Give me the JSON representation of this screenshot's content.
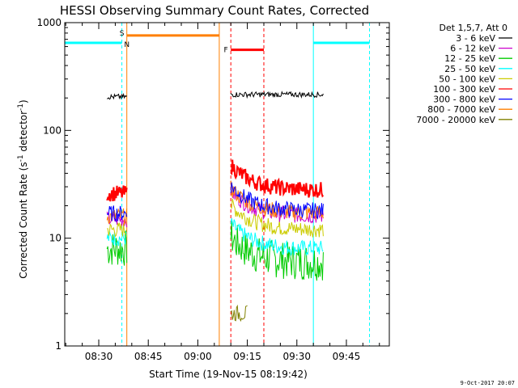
{
  "chart_data": {
    "type": "line",
    "title": "HESSI Observing Summary Count Rates, Corrected",
    "ylabel": "Corrected Count Rate (s⁻¹ detector⁻¹)",
    "xlabel": "Start Time (19-Nov-15 08:19:42)",
    "y_scale": "log",
    "ylim": [
      1,
      1000
    ],
    "xlim_minutes": [
      "08:19:42",
      "09:58:00"
    ],
    "y_ticks": [
      "1",
      "10",
      "100",
      "1000"
    ],
    "x_ticks": [
      "08:30",
      "08:45",
      "09:00",
      "09:15",
      "09:30",
      "09:45"
    ],
    "legend_title": "Det 1,5,7, Att 0",
    "legend_placement": "right",
    "series": [
      {
        "name": "3 - 6 keV",
        "color": "#000000",
        "segments": [
          {
            "x": [
              "08:32:30",
              "08:38:30"
            ],
            "level": 205
          },
          {
            "x": [
              "09:10:00",
              "09:38:00"
            ],
            "level": 205
          }
        ]
      },
      {
        "name": "6 - 12 keV",
        "color": "#cc00cc",
        "segments": [
          {
            "x": [
              "08:32:30",
              "08:38:30"
            ],
            "level": 15
          },
          {
            "x": [
              "09:10:00",
              "09:38:00"
            ],
            "level": 16
          }
        ]
      },
      {
        "name": "12 - 25 keV",
        "color": "#00cc00",
        "segments": [
          {
            "x": [
              "08:32:30",
              "08:38:30"
            ],
            "level": 8
          },
          {
            "x": [
              "09:10:00",
              "09:38:00"
            ],
            "level": 6
          }
        ]
      },
      {
        "name": "25 - 50 keV",
        "color": "#00ffff",
        "segments": [
          {
            "x": [
              "08:32:30",
              "08:38:30"
            ],
            "level": 10
          },
          {
            "x": [
              "09:10:00",
              "09:38:00"
            ],
            "level": 8
          }
        ]
      },
      {
        "name": "50 - 100 keV",
        "color": "#cccc00",
        "segments": [
          {
            "x": [
              "08:32:30",
              "08:38:30"
            ],
            "level": 12
          },
          {
            "x": [
              "09:10:00",
              "09:38:00"
            ],
            "level": 12
          }
        ]
      },
      {
        "name": "100 - 300 keV",
        "color": "#ff0000",
        "segments": [
          {
            "x": [
              "08:32:30",
              "08:38:30"
            ],
            "level": 26
          },
          {
            "x": [
              "09:10:00",
              "09:38:00"
            ],
            "level": 28
          }
        ]
      },
      {
        "name": "300 - 800 keV",
        "color": "#0000ff",
        "segments": [
          {
            "x": [
              "08:32:30",
              "08:38:30"
            ],
            "level": 17
          },
          {
            "x": [
              "09:10:00",
              "09:38:00"
            ],
            "level": 18
          }
        ]
      },
      {
        "name": "800 - 7000 keV",
        "color": "#ff7f00",
        "segments": [
          {
            "x": [
              "08:32:30",
              "08:38:30"
            ],
            "level": 16
          },
          {
            "x": [
              "09:10:00",
              "09:38:00"
            ],
            "level": 17
          }
        ]
      },
      {
        "name": "7000 - 20000 keV",
        "color": "#808000",
        "segments": [
          {
            "x": [
              "09:10:00",
              "09:15:00"
            ],
            "level": 2
          }
        ]
      }
    ],
    "annotations": [
      {
        "label": "S",
        "time": "08:37:00",
        "color": "#ff7f00"
      },
      {
        "label": "N",
        "time": "08:38:30",
        "color": "#00ffff"
      },
      {
        "label": "F",
        "time": "09:08:30",
        "color": "#ff0000"
      }
    ],
    "status_bars": [
      {
        "name": "night",
        "color": "#00ffff",
        "ranges": [
          [
            "08:19:42",
            "08:37:00"
          ],
          [
            "09:35:00",
            "09:52:00"
          ]
        ]
      },
      {
        "name": "saa",
        "color": "#ff7f00",
        "ranges": [
          [
            "08:38:30",
            "09:06:30"
          ]
        ]
      },
      {
        "name": "flare",
        "color": "#ff0000",
        "ranges": [
          [
            "09:10:00",
            "09:20:00"
          ]
        ]
      }
    ]
  },
  "footer": {
    "timestamp": "9-Oct-2017 20:07"
  }
}
